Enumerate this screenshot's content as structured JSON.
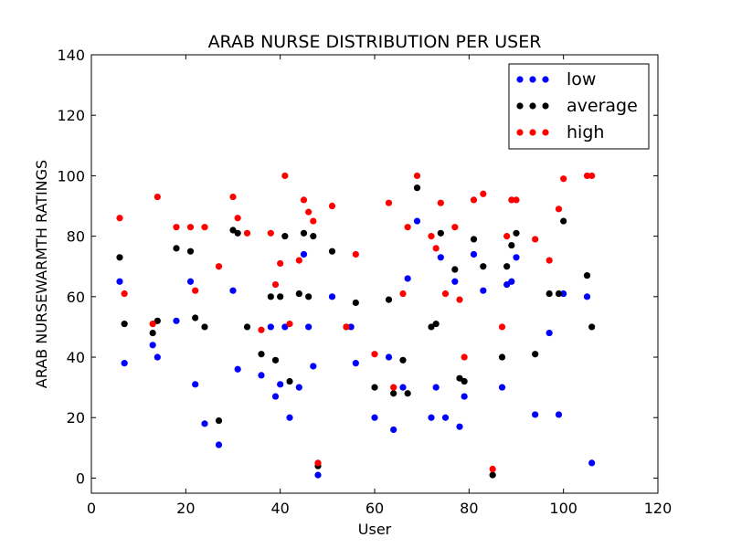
{
  "chart_data": {
    "type": "scatter",
    "title": "ARAB NURSE DISTRIBUTION PER USER",
    "xlabel": "User",
    "ylabel": "ARAB NURSEWARMTH RATINGS",
    "xlim": [
      0,
      120
    ],
    "ylim": [
      -5,
      140
    ],
    "xticks": [
      "0",
      "20",
      "40",
      "60",
      "80",
      "100",
      "120"
    ],
    "yticks": [
      "0",
      "20",
      "40",
      "60",
      "80",
      "100",
      "120",
      "140"
    ],
    "grid": false,
    "legend_position": "top-right",
    "series": [
      {
        "name": "low",
        "color": "#0000ff",
        "points": [
          [
            6,
            65
          ],
          [
            7,
            38
          ],
          [
            13,
            44
          ],
          [
            14,
            40
          ],
          [
            18,
            52
          ],
          [
            21,
            65
          ],
          [
            22,
            31
          ],
          [
            24,
            18
          ],
          [
            27,
            11
          ],
          [
            30,
            62
          ],
          [
            31,
            36
          ],
          [
            36,
            34
          ],
          [
            38,
            50
          ],
          [
            39,
            27
          ],
          [
            40,
            31
          ],
          [
            41,
            50
          ],
          [
            42,
            20
          ],
          [
            44,
            30
          ],
          [
            45,
            74
          ],
          [
            46,
            50
          ],
          [
            47,
            37
          ],
          [
            48,
            1
          ],
          [
            51,
            60
          ],
          [
            55,
            50
          ],
          [
            56,
            38
          ],
          [
            60,
            20
          ],
          [
            63,
            40
          ],
          [
            64,
            16
          ],
          [
            66,
            30
          ],
          [
            67,
            66
          ],
          [
            69,
            85
          ],
          [
            72,
            20
          ],
          [
            73,
            30
          ],
          [
            74,
            73
          ],
          [
            75,
            20
          ],
          [
            77,
            65
          ],
          [
            78,
            17
          ],
          [
            79,
            27
          ],
          [
            81,
            74
          ],
          [
            83,
            62
          ],
          [
            87,
            30
          ],
          [
            88,
            64
          ],
          [
            89,
            65
          ],
          [
            90,
            73
          ],
          [
            94,
            21
          ],
          [
            97,
            48
          ],
          [
            99,
            21
          ],
          [
            100,
            61
          ],
          [
            105,
            60
          ],
          [
            106,
            5
          ]
        ]
      },
      {
        "name": "average",
        "color": "#000000",
        "points": [
          [
            6,
            73
          ],
          [
            7,
            51
          ],
          [
            13,
            48
          ],
          [
            14,
            52
          ],
          [
            18,
            76
          ],
          [
            21,
            75
          ],
          [
            22,
            53
          ],
          [
            24,
            50
          ],
          [
            27,
            19
          ],
          [
            30,
            82
          ],
          [
            31,
            81
          ],
          [
            33,
            50
          ],
          [
            36,
            41
          ],
          [
            38,
            60
          ],
          [
            39,
            39
          ],
          [
            40,
            60
          ],
          [
            41,
            80
          ],
          [
            42,
            32
          ],
          [
            44,
            61
          ],
          [
            45,
            81
          ],
          [
            46,
            60
          ],
          [
            47,
            80
          ],
          [
            48,
            4
          ],
          [
            51,
            75
          ],
          [
            54,
            50
          ],
          [
            56,
            58
          ],
          [
            60,
            30
          ],
          [
            63,
            59
          ],
          [
            64,
            28
          ],
          [
            66,
            39
          ],
          [
            67,
            28
          ],
          [
            69,
            96
          ],
          [
            72,
            50
          ],
          [
            73,
            51
          ],
          [
            74,
            81
          ],
          [
            77,
            69
          ],
          [
            78,
            33
          ],
          [
            79,
            32
          ],
          [
            81,
            79
          ],
          [
            83,
            70
          ],
          [
            85,
            1
          ],
          [
            87,
            40
          ],
          [
            88,
            70
          ],
          [
            89,
            77
          ],
          [
            90,
            81
          ],
          [
            94,
            41
          ],
          [
            97,
            61
          ],
          [
            99,
            61
          ],
          [
            100,
            85
          ],
          [
            105,
            67
          ],
          [
            106,
            50
          ]
        ]
      },
      {
        "name": "high",
        "color": "#ff0000",
        "points": [
          [
            6,
            86
          ],
          [
            7,
            61
          ],
          [
            13,
            51
          ],
          [
            14,
            93
          ],
          [
            18,
            83
          ],
          [
            21,
            83
          ],
          [
            22,
            62
          ],
          [
            24,
            83
          ],
          [
            27,
            70
          ],
          [
            30,
            93
          ],
          [
            31,
            86
          ],
          [
            33,
            81
          ],
          [
            36,
            49
          ],
          [
            38,
            81
          ],
          [
            39,
            64
          ],
          [
            40,
            71
          ],
          [
            41,
            100
          ],
          [
            42,
            51
          ],
          [
            44,
            72
          ],
          [
            45,
            92
          ],
          [
            46,
            88
          ],
          [
            47,
            85
          ],
          [
            48,
            5
          ],
          [
            51,
            90
          ],
          [
            54,
            50
          ],
          [
            56,
            74
          ],
          [
            60,
            41
          ],
          [
            63,
            91
          ],
          [
            64,
            30
          ],
          [
            66,
            61
          ],
          [
            67,
            83
          ],
          [
            69,
            100
          ],
          [
            72,
            80
          ],
          [
            73,
            76
          ],
          [
            74,
            91
          ],
          [
            75,
            61
          ],
          [
            77,
            83
          ],
          [
            78,
            59
          ],
          [
            79,
            40
          ],
          [
            81,
            92
          ],
          [
            83,
            94
          ],
          [
            85,
            3
          ],
          [
            87,
            50
          ],
          [
            88,
            80
          ],
          [
            89,
            92
          ],
          [
            90,
            92
          ],
          [
            94,
            79
          ],
          [
            97,
            72
          ],
          [
            99,
            89
          ],
          [
            100,
            99
          ],
          [
            105,
            100
          ],
          [
            106,
            100
          ]
        ]
      }
    ]
  }
}
